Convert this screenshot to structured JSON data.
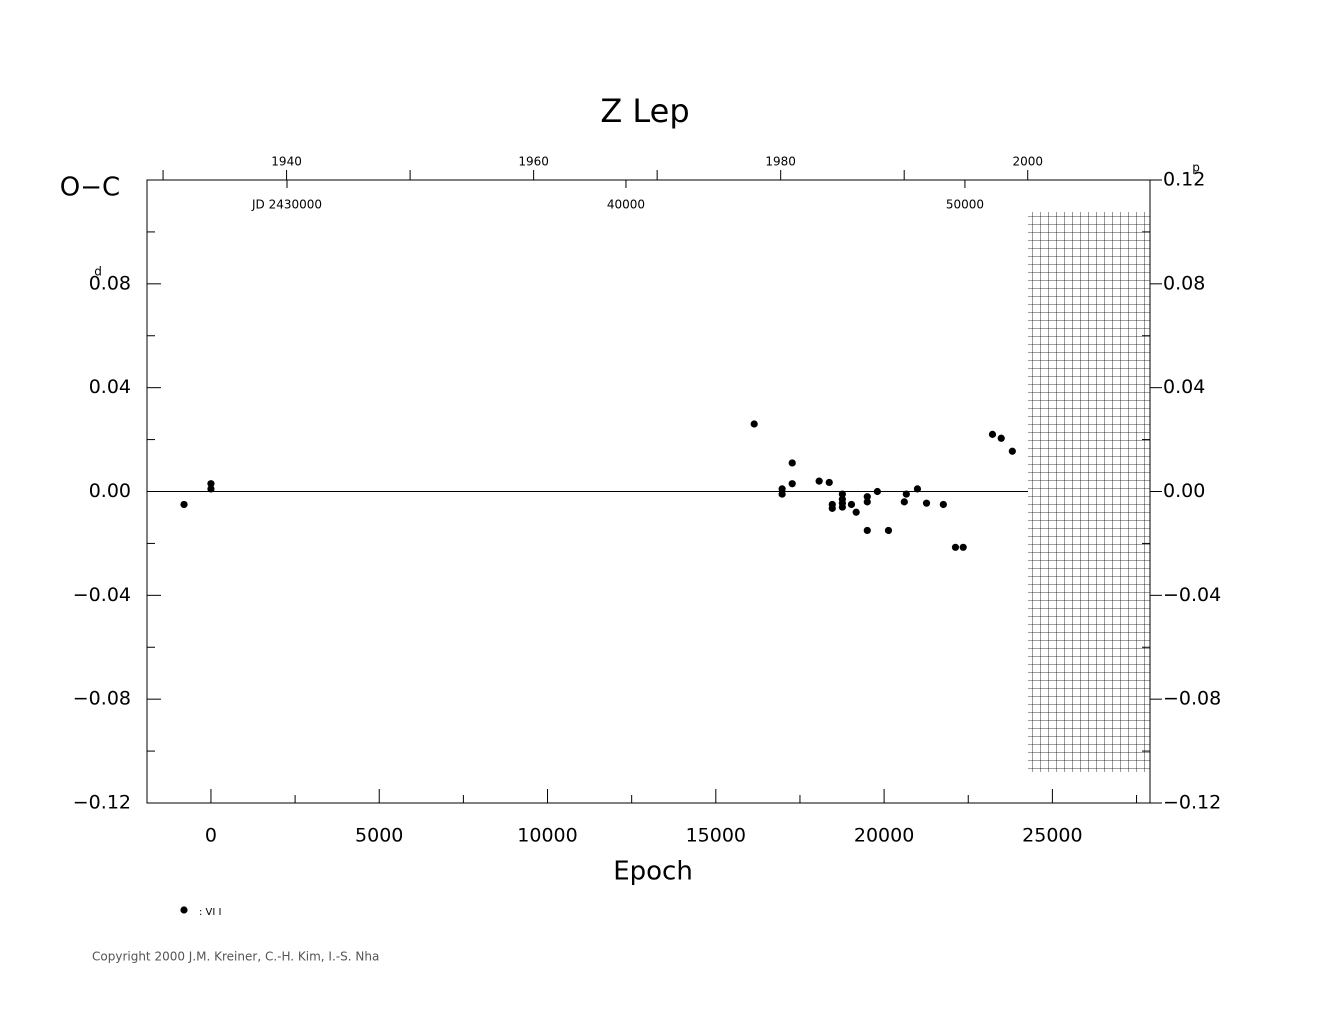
{
  "chart_data": {
    "type": "scatter",
    "title": "Z  Lep",
    "y_label": "O−C",
    "x_label": "Epoch",
    "y_unit": "d",
    "y2_unit": "p",
    "xlim": [
      -1900,
      27900
    ],
    "xticks": [
      0,
      5000,
      10000,
      15000,
      20000,
      25000
    ],
    "xminor": [
      2500,
      7500,
      12500,
      17500,
      22500,
      27500
    ],
    "ylim": [
      -0.12,
      0.12
    ],
    "yticks": [
      {
        "value": 0.08,
        "label": "0.08"
      },
      {
        "value": 0.04,
        "label": "0.04"
      },
      {
        "value": 0,
        "label": "0.00"
      },
      {
        "value": -0.04,
        "label": "−0.04"
      },
      {
        "value": -0.08,
        "label": "−0.08"
      },
      {
        "value": -0.12,
        "label": "−0.12"
      }
    ],
    "yminor": [
      0.1,
      0.06,
      0.02,
      -0.02,
      -0.06,
      -0.1
    ],
    "y2lim": [
      -0.12,
      0.12
    ],
    "y2ticks": [
      {
        "value": 0.12,
        "label": "0.12"
      },
      {
        "value": 0.08,
        "label": "0.08"
      },
      {
        "value": 0.04,
        "label": "0.04"
      },
      {
        "value": 0,
        "label": "0.00"
      },
      {
        "value": -0.04,
        "label": "−0.04"
      },
      {
        "value": -0.08,
        "label": "−0.08"
      },
      {
        "value": -0.12,
        "label": "−0.12"
      }
    ],
    "x2lim": [
      1928.7,
      2009.9
    ],
    "x2ticks": [
      1940,
      1960,
      1980,
      2000
    ],
    "x2minor": [
      1930,
      1950,
      1970,
      1990
    ],
    "jdlim": [
      2425870,
      2455460
    ],
    "jd_labels": [
      {
        "value": 2430000,
        "label": "JD  2430000"
      },
      {
        "value": 2440000,
        "label": "40000"
      },
      {
        "value": 2450000,
        "label": "50000"
      }
    ],
    "zero_line": true,
    "series": [
      {
        "name": ": VI I",
        "color": "#000000",
        "x": [
          -800,
          0,
          0,
          16140,
          16970,
          16970,
          17270,
          17270,
          18070,
          18370,
          18460,
          18460,
          18760,
          18760,
          18760,
          18760,
          19030,
          19170,
          19500,
          19500,
          19500,
          19800,
          20130,
          20600,
          20660,
          20990,
          21260,
          21760,
          22120,
          22350,
          23220,
          23480,
          23810
        ],
        "values": [
          -0.005,
          0.003,
          0.001,
          0.026,
          0.001,
          -0.001,
          0.011,
          0.003,
          0.004,
          0.0035,
          -0.005,
          -0.0065,
          -0.001,
          -0.003,
          -0.0045,
          -0.006,
          -0.005,
          -0.008,
          -0.002,
          -0.004,
          -0.015,
          0,
          -0.015,
          -0.004,
          -0.001,
          0.001,
          -0.0045,
          -0.005,
          -0.0215,
          -0.0215,
          0.022,
          0.0205,
          0.0155
        ]
      }
    ],
    "copyright": "Copyright 2000 J.M. Kreiner, C.-H. Kim, I.-S. Nha"
  }
}
